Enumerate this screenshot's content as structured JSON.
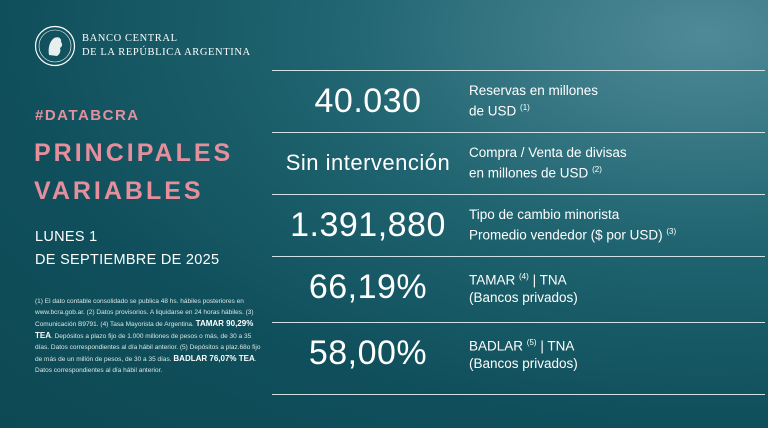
{
  "header": {
    "bank_line1": "BANCO CENTRAL",
    "bank_line2": "DE LA REPÚBLICA ARGENTINA",
    "hashtag": "#DATABCRA",
    "title_line1": "PRINCIPALES",
    "title_line2": "VARIABLES",
    "date_line1": "LUNES 1",
    "date_line2": "DE SEPTIEMBRE DE 2025"
  },
  "notes": {
    "part1": "(1) El dato contable consolidado se publica 48 hs. hábiles posteriores en www.bcra.gob.ar. (2) Datos provisorios. A liquidarse en 24 horas hábiles. (3) Comunicación B9791. (4) Tasa Mayorista de Argentina. ",
    "tamar_bold": "TAMAR 90,29% TEA",
    "part2": ". Depósitos a plazo fijo de 1.000 millones de pesos o más, de 30 a 35 días. Datos correspondientes al día hábil anterior. (5) Depósitos a plaz.68o fijo de más de un millón de pesos, de 30 a 35 días. ",
    "badlar_bold": "BADLAR 76,07% TEA",
    "part3": ". Datos correspondientes al día hábil anterior."
  },
  "variables": [
    {
      "value": "40.030",
      "label1": "Reservas en millones",
      "label2": "de USD",
      "sup": "(1)"
    },
    {
      "value": "Sin intervención",
      "label1": "Compra / Venta de divisas",
      "label2": "en millones de USD",
      "sup": "(2)"
    },
    {
      "value": "1.391,880",
      "label1": "Tipo de cambio minorista",
      "label2": "Promedio vendedor ($ por USD)",
      "sup": "(3)"
    },
    {
      "value": "66,19%",
      "label1_pre": "TAMAR",
      "label1_sup": "(4)",
      "label1_post": "| TNA",
      "label2": "(Bancos privados)"
    },
    {
      "value": "58,00%",
      "label1_pre": "BADLAR",
      "label1_sup": "(5)",
      "label1_post": "| TNA",
      "label2": "(Bancos privados)"
    }
  ],
  "colors": {
    "accent": "#e58f9d",
    "background": "#0f4f5b"
  }
}
